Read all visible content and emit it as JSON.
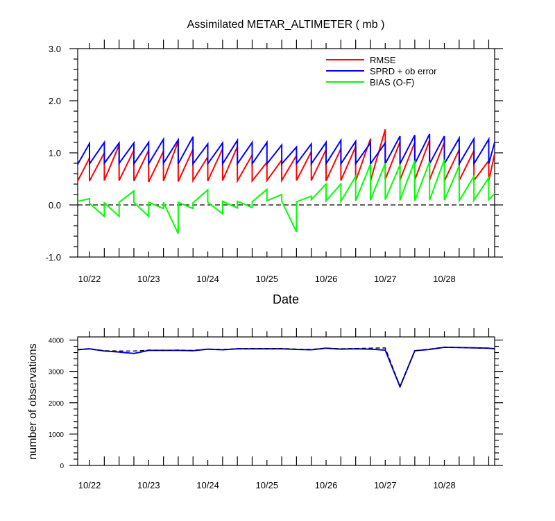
{
  "chart_data": [
    {
      "type": "line",
      "title": "Assimilated METAR_ALTIMETER ( mb )",
      "xlabel": "Date",
      "ylabel": "",
      "x_range": [
        21.8,
        28.85
      ],
      "ylim": [
        -1.0,
        3.0
      ],
      "y_ticks": [
        "-1.0",
        "0.0",
        "1.0",
        "2.0",
        "3.0"
      ],
      "x_tick_labels": [
        {
          "x": 22,
          "label": "10/22"
        },
        {
          "x": 23,
          "label": "10/23"
        },
        {
          "x": 24,
          "label": "10/24"
        },
        {
          "x": 25,
          "label": "10/25"
        },
        {
          "x": 26,
          "label": "10/26"
        },
        {
          "x": 27,
          "label": "10/27"
        },
        {
          "x": 28,
          "label": "10/28"
        }
      ],
      "zero_line": "dashed",
      "legend_position": "top-right",
      "series": [
        {
          "name": "RMSE",
          "color": "#ff0000",
          "points": [
            [
              21.8,
              0.46
            ],
            [
              22.0,
              0.9
            ],
            [
              22.0,
              0.46
            ],
            [
              22.25,
              1.0
            ],
            [
              22.25,
              0.47
            ],
            [
              22.5,
              1.15
            ],
            [
              22.5,
              0.47
            ],
            [
              22.75,
              1.05
            ],
            [
              22.75,
              0.46
            ],
            [
              23.0,
              1.05
            ],
            [
              23.0,
              0.44
            ],
            [
              23.25,
              1.03
            ],
            [
              23.25,
              0.46
            ],
            [
              23.5,
              1.22
            ],
            [
              23.5,
              0.45
            ],
            [
              23.75,
              1.07
            ],
            [
              23.75,
              0.47
            ],
            [
              24.0,
              0.92
            ],
            [
              24.0,
              0.46
            ],
            [
              24.25,
              1.08
            ],
            [
              24.25,
              0.47
            ],
            [
              24.5,
              1.12
            ],
            [
              24.5,
              0.46
            ],
            [
              24.75,
              0.96
            ],
            [
              24.75,
              0.46
            ],
            [
              25.0,
              0.82
            ],
            [
              25.0,
              0.47
            ],
            [
              25.25,
              0.86
            ],
            [
              25.25,
              0.47
            ],
            [
              25.5,
              0.95
            ],
            [
              25.5,
              0.47
            ],
            [
              25.75,
              1.02
            ],
            [
              25.75,
              0.47
            ],
            [
              26.0,
              1.06
            ],
            [
              26.0,
              0.46
            ],
            [
              26.25,
              1.08
            ],
            [
              26.25,
              0.47
            ],
            [
              26.5,
              1.12
            ],
            [
              26.5,
              0.46
            ],
            [
              26.75,
              1.27
            ],
            [
              26.75,
              0.46
            ],
            [
              27.0,
              1.45
            ],
            [
              27.0,
              0.49
            ],
            [
              27.25,
              1.21
            ],
            [
              27.25,
              0.48
            ],
            [
              27.5,
              1.2
            ],
            [
              27.5,
              0.48
            ],
            [
              27.75,
              1.24
            ],
            [
              27.75,
              0.48
            ],
            [
              28.0,
              1.2
            ],
            [
              28.0,
              0.46
            ],
            [
              28.25,
              1.06
            ],
            [
              28.25,
              0.47
            ],
            [
              28.5,
              1.04
            ],
            [
              28.5,
              0.47
            ],
            [
              28.75,
              0.85
            ],
            [
              28.75,
              0.46
            ],
            [
              28.85,
              0.98
            ]
          ]
        },
        {
          "name": "SPRD + ob error",
          "color": "#0000ff",
          "points": [
            [
              21.8,
              0.78
            ],
            [
              22.0,
              1.18
            ],
            [
              22.0,
              0.79
            ],
            [
              22.25,
              1.2
            ],
            [
              22.25,
              0.8
            ],
            [
              22.5,
              1.19
            ],
            [
              22.5,
              0.8
            ],
            [
              22.75,
              1.19
            ],
            [
              22.75,
              0.79
            ],
            [
              23.0,
              1.2
            ],
            [
              23.0,
              0.79
            ],
            [
              23.25,
              1.26
            ],
            [
              23.25,
              0.8
            ],
            [
              23.5,
              1.25
            ],
            [
              23.5,
              0.79
            ],
            [
              23.75,
              1.31
            ],
            [
              23.75,
              0.79
            ],
            [
              24.0,
              1.17
            ],
            [
              24.0,
              0.79
            ],
            [
              24.25,
              1.19
            ],
            [
              24.25,
              0.79
            ],
            [
              24.5,
              1.24
            ],
            [
              24.5,
              0.79
            ],
            [
              24.75,
              1.2
            ],
            [
              24.75,
              0.79
            ],
            [
              25.0,
              1.2
            ],
            [
              25.0,
              0.79
            ],
            [
              25.25,
              1.15
            ],
            [
              25.25,
              0.79
            ],
            [
              25.5,
              1.11
            ],
            [
              25.5,
              0.79
            ],
            [
              25.75,
              1.17
            ],
            [
              25.75,
              0.79
            ],
            [
              26.0,
              1.2
            ],
            [
              26.0,
              0.79
            ],
            [
              26.25,
              1.24
            ],
            [
              26.25,
              0.79
            ],
            [
              26.5,
              1.22
            ],
            [
              26.5,
              0.79
            ],
            [
              26.75,
              1.19
            ],
            [
              26.75,
              0.79
            ],
            [
              27.0,
              1.19
            ],
            [
              27.0,
              0.79
            ],
            [
              27.25,
              1.32
            ],
            [
              27.25,
              0.79
            ],
            [
              27.5,
              1.34
            ],
            [
              27.5,
              0.79
            ],
            [
              27.75,
              1.36
            ],
            [
              27.75,
              0.79
            ],
            [
              28.0,
              1.32
            ],
            [
              28.0,
              0.79
            ],
            [
              28.25,
              1.28
            ],
            [
              28.25,
              0.79
            ],
            [
              28.5,
              1.27
            ],
            [
              28.5,
              0.79
            ],
            [
              28.75,
              1.26
            ],
            [
              28.75,
              0.79
            ],
            [
              28.85,
              1.2
            ]
          ]
        },
        {
          "name": "BIAS (O-F)",
          "color": "#00ff00",
          "points": [
            [
              21.8,
              0.07
            ],
            [
              22.0,
              0.12
            ],
            [
              22.0,
              0.03
            ],
            [
              22.25,
              -0.22
            ],
            [
              22.25,
              0.04
            ],
            [
              22.5,
              -0.22
            ],
            [
              22.5,
              0.05
            ],
            [
              22.75,
              0.27
            ],
            [
              22.75,
              0.05
            ],
            [
              23.0,
              -0.22
            ],
            [
              23.0,
              0.05
            ],
            [
              23.25,
              -0.07
            ],
            [
              23.25,
              0.05
            ],
            [
              23.5,
              -0.55
            ],
            [
              23.5,
              0.05
            ],
            [
              23.75,
              -0.07
            ],
            [
              23.75,
              0.04
            ],
            [
              24.0,
              0.29
            ],
            [
              24.0,
              0.05
            ],
            [
              24.25,
              -0.17
            ],
            [
              24.25,
              0.07
            ],
            [
              24.5,
              -0.06
            ],
            [
              24.5,
              0.07
            ],
            [
              24.75,
              -0.05
            ],
            [
              24.75,
              0.06
            ],
            [
              25.0,
              0.3
            ],
            [
              25.0,
              0.08
            ],
            [
              25.25,
              0.2
            ],
            [
              25.25,
              0.07
            ],
            [
              25.5,
              -0.52
            ],
            [
              25.5,
              0.06
            ],
            [
              25.75,
              0.17
            ],
            [
              25.75,
              0.1
            ],
            [
              26.0,
              0.4
            ],
            [
              26.0,
              0.08
            ],
            [
              26.25,
              0.4
            ],
            [
              26.25,
              0.07
            ],
            [
              26.5,
              0.55
            ],
            [
              26.5,
              0.08
            ],
            [
              26.75,
              0.78
            ],
            [
              26.75,
              0.09
            ],
            [
              27.0,
              0.8
            ],
            [
              27.0,
              0.1
            ],
            [
              27.25,
              0.77
            ],
            [
              27.25,
              0.09
            ],
            [
              27.5,
              0.85
            ],
            [
              27.5,
              0.08
            ],
            [
              27.75,
              0.83
            ],
            [
              27.75,
              0.09
            ],
            [
              28.0,
              0.87
            ],
            [
              28.0,
              0.09
            ],
            [
              28.25,
              0.75
            ],
            [
              28.25,
              0.08
            ],
            [
              28.5,
              0.55
            ],
            [
              28.5,
              0.09
            ],
            [
              28.75,
              0.52
            ],
            [
              28.75,
              0.1
            ],
            [
              28.85,
              0.22
            ]
          ]
        }
      ]
    },
    {
      "type": "line",
      "title": "",
      "xlabel": "",
      "ylabel": "number of observations",
      "x_range": [
        21.8,
        28.85
      ],
      "ylim": [
        0,
        4100
      ],
      "y_ticks": [
        "0",
        "1000",
        "2000",
        "3000",
        "4000"
      ],
      "x_tick_labels": [
        {
          "x": 22,
          "label": "10/22"
        },
        {
          "x": 23,
          "label": "10/23"
        },
        {
          "x": 24,
          "label": "10/24"
        },
        {
          "x": 25,
          "label": "10/25"
        },
        {
          "x": 26,
          "label": "10/26"
        },
        {
          "x": 27,
          "label": "10/27"
        },
        {
          "x": 28,
          "label": "10/28"
        }
      ],
      "series": [
        {
          "color": "#0000ff",
          "style": "solid",
          "points": [
            [
              21.8,
              3690
            ],
            [
              22.0,
              3720
            ],
            [
              22.25,
              3650
            ],
            [
              22.5,
              3620
            ],
            [
              22.75,
              3570
            ],
            [
              23.0,
              3670
            ],
            [
              23.25,
              3670
            ],
            [
              23.5,
              3670
            ],
            [
              23.75,
              3660
            ],
            [
              24.0,
              3710
            ],
            [
              24.25,
              3690
            ],
            [
              24.5,
              3720
            ],
            [
              24.75,
              3720
            ],
            [
              25.0,
              3720
            ],
            [
              25.25,
              3720
            ],
            [
              25.5,
              3700
            ],
            [
              25.75,
              3690
            ],
            [
              26.0,
              3740
            ],
            [
              26.25,
              3710
            ],
            [
              26.5,
              3720
            ],
            [
              26.75,
              3710
            ],
            [
              27.0,
              3680
            ],
            [
              27.25,
              2510
            ],
            [
              27.5,
              3660
            ],
            [
              27.75,
              3700
            ],
            [
              28.0,
              3770
            ],
            [
              28.25,
              3760
            ],
            [
              28.5,
              3750
            ],
            [
              28.75,
              3740
            ],
            [
              28.85,
              3720
            ]
          ]
        },
        {
          "color": "#000000",
          "style": "dashed",
          "points": [
            [
              21.8,
              3690
            ],
            [
              22.0,
              3720
            ],
            [
              22.25,
              3660
            ],
            [
              22.5,
              3650
            ],
            [
              22.75,
              3650
            ],
            [
              23.0,
              3680
            ],
            [
              23.25,
              3670
            ],
            [
              23.5,
              3680
            ],
            [
              23.75,
              3670
            ],
            [
              24.0,
              3710
            ],
            [
              24.25,
              3700
            ],
            [
              24.5,
              3720
            ],
            [
              24.75,
              3730
            ],
            [
              25.0,
              3730
            ],
            [
              25.25,
              3730
            ],
            [
              25.5,
              3710
            ],
            [
              25.75,
              3700
            ],
            [
              26.0,
              3740
            ],
            [
              26.25,
              3720
            ],
            [
              26.5,
              3730
            ],
            [
              26.75,
              3740
            ],
            [
              27.0,
              3750
            ],
            [
              27.25,
              2520
            ],
            [
              27.5,
              3660
            ],
            [
              27.75,
              3710
            ],
            [
              28.0,
              3770
            ],
            [
              28.25,
              3760
            ],
            [
              28.5,
              3750
            ],
            [
              28.75,
              3740
            ],
            [
              28.85,
              3720
            ]
          ]
        }
      ]
    }
  ]
}
